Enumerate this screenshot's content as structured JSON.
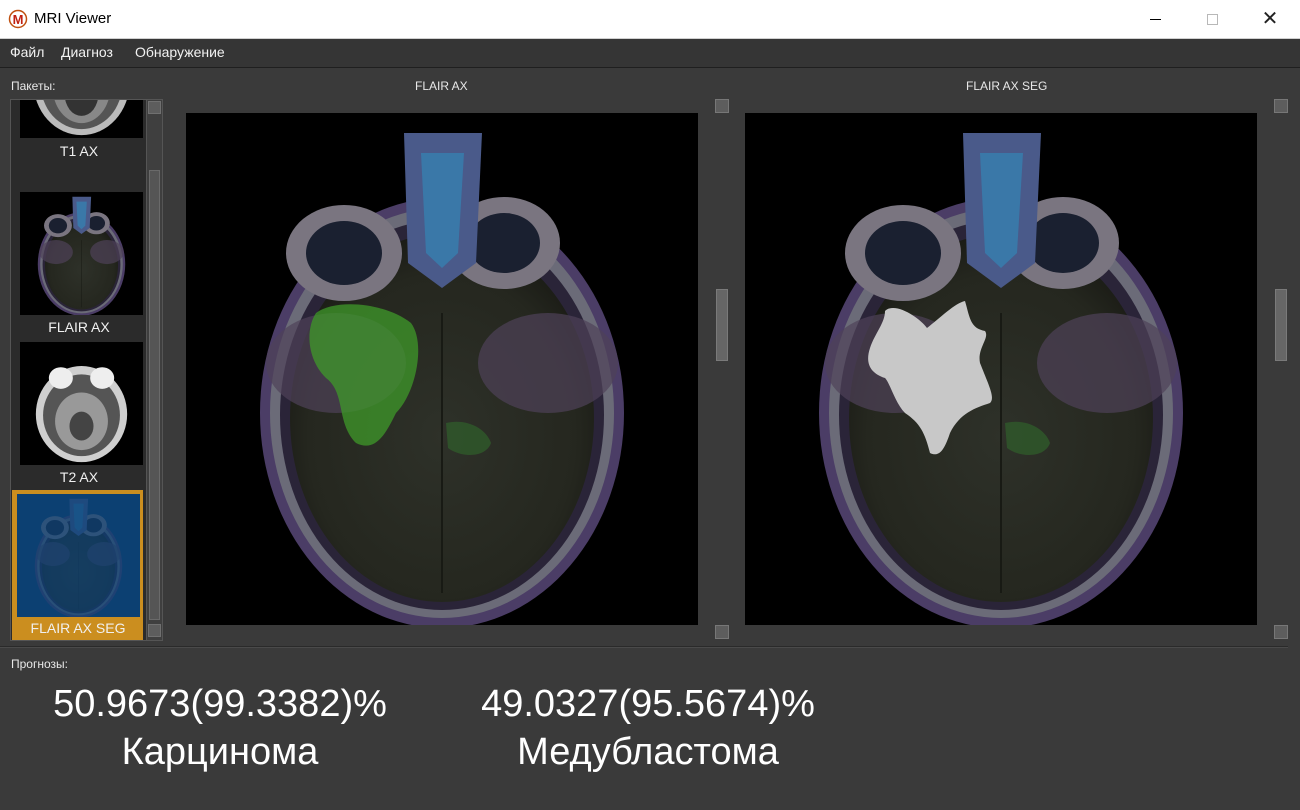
{
  "window": {
    "title": "MRI Viewer",
    "minimize_icon": "minimize-icon",
    "maximize_icon": "maximize-icon",
    "close_icon": "close-icon",
    "close_glyph": "✕"
  },
  "menu": {
    "items": [
      {
        "label": "Файл"
      },
      {
        "label": "Диагноз"
      },
      {
        "label": "Обнаружение"
      }
    ]
  },
  "packets": {
    "label": "Пакеты:",
    "items": [
      {
        "label": "T1 AX",
        "selected": false
      },
      {
        "label": "FLAIR AX",
        "selected": false
      },
      {
        "label": "T2 AX",
        "selected": false
      },
      {
        "label": "FLAIR AX SEG",
        "selected": true
      }
    ],
    "selected_color": "#cb8e1f"
  },
  "viewers": {
    "left": {
      "title": "FLAIR AX"
    },
    "right": {
      "title": "FLAIR AX SEG"
    }
  },
  "predictions": {
    "label": "Прогнозы:",
    "items": [
      {
        "value": "50.9673(99.3382)%",
        "name": "Карцинома"
      },
      {
        "value": "49.0327(95.5674)%",
        "name": "Медубластома"
      }
    ]
  },
  "colors": {
    "background": "#3a3a3a",
    "tumor_highlight": "#3f9a2a",
    "segmentation_mask": "#c8c8c8"
  }
}
